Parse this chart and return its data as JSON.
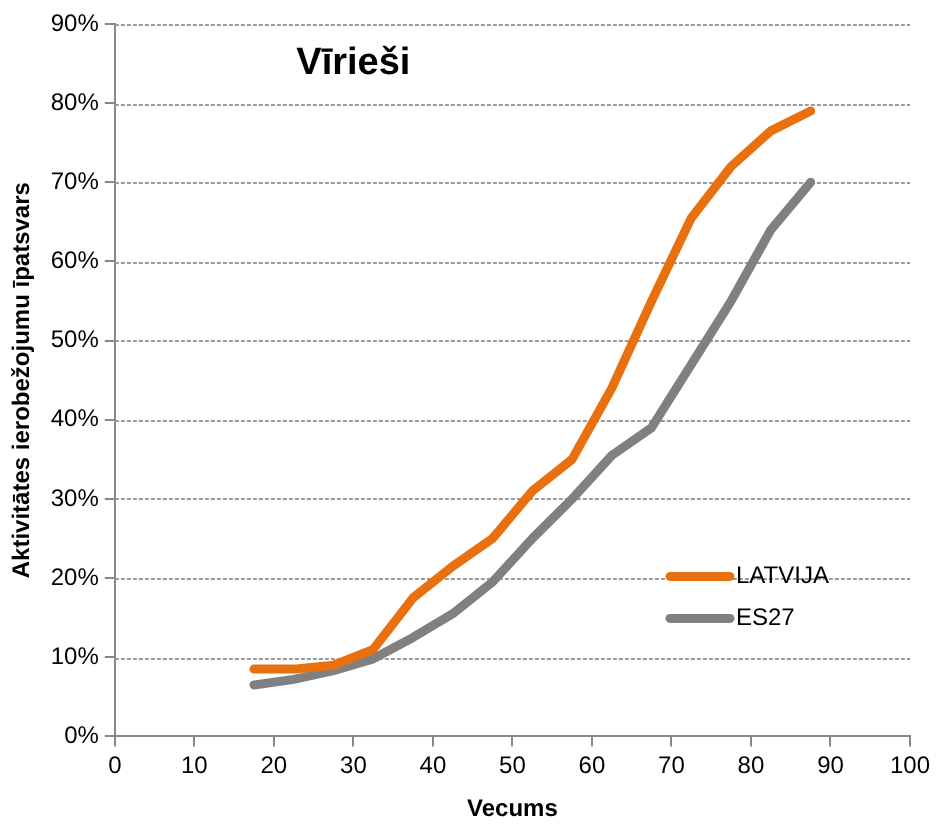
{
  "chart_data": {
    "type": "line",
    "title": "Vīrieši",
    "xlabel": "Vecums",
    "ylabel": "Aktivitātes ierobežojumu īpatsvars",
    "x": [
      17.5,
      22.5,
      27.5,
      32.5,
      37.5,
      42.5,
      47.5,
      52.5,
      57.5,
      62.5,
      67.5,
      72.5,
      77.5,
      82.5,
      87.5
    ],
    "series": [
      {
        "name": "LATVIJA",
        "color": "#e8700f",
        "values": [
          8.5,
          8.5,
          9,
          11,
          17.5,
          21.5,
          25,
          31,
          35,
          44,
          55,
          65.5,
          72,
          76.5,
          79
        ]
      },
      {
        "name": "ES27",
        "color": "#808080",
        "values": [
          6.5,
          7.2,
          8.3,
          9.8,
          12.5,
          15.5,
          19.5,
          25,
          30,
          35.5,
          39,
          47,
          55,
          64,
          70
        ]
      }
    ],
    "xlim": [
      0,
      100
    ],
    "xticks": [
      0,
      10,
      20,
      30,
      40,
      50,
      60,
      70,
      80,
      90,
      100
    ],
    "ylim": [
      0,
      90
    ],
    "yticks": [
      {
        "value": 0,
        "label": "0%"
      },
      {
        "value": 10,
        "label": "10%"
      },
      {
        "value": 20,
        "label": "20%"
      },
      {
        "value": 30,
        "label": "30%"
      },
      {
        "value": 40,
        "label": "40%"
      },
      {
        "value": 50,
        "label": "50%"
      },
      {
        "value": 60,
        "label": "60%"
      },
      {
        "value": 70,
        "label": "70%"
      },
      {
        "value": 80,
        "label": "80%"
      },
      {
        "value": 90,
        "label": "90%"
      }
    ],
    "grid": "y",
    "legend": "bottom right",
    "marker": "none",
    "line_style": "solid"
  }
}
